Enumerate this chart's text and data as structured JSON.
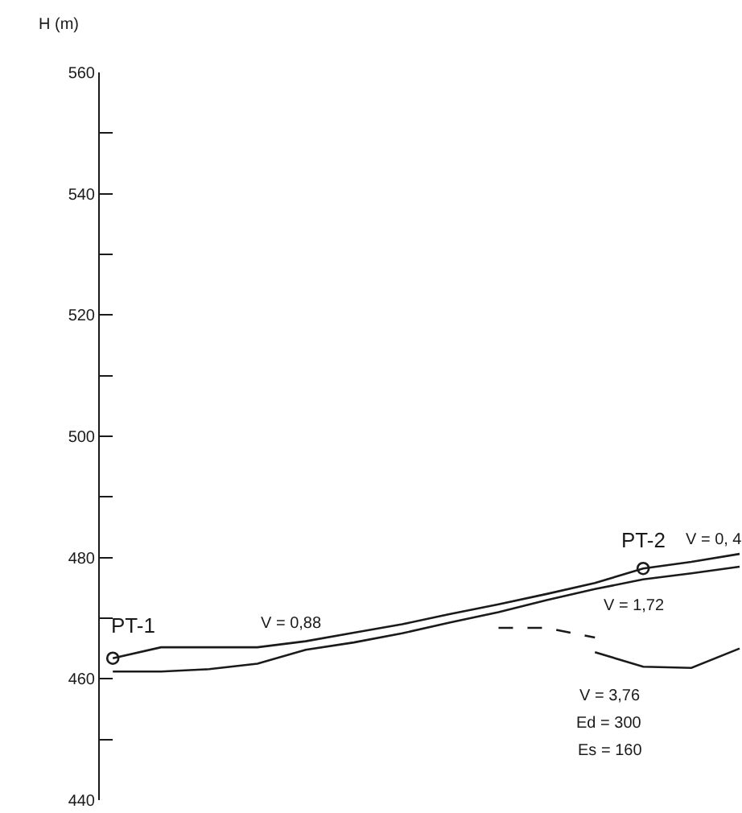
{
  "chart_data": {
    "type": "line",
    "ylabel": "H (m)",
    "categories": [
      null,
      null,
      null,
      null,
      null,
      null,
      null,
      null,
      null,
      null,
      null,
      null,
      null,
      null
    ],
    "series": [
      {
        "color": "#1a1a1a",
        "values": [
          463.4,
          465.2,
          465.2,
          465.2,
          466.2,
          467.6,
          469.0,
          470.7,
          472.3,
          474.0,
          475.8,
          478.2,
          479.3,
          480.6
        ]
      },
      {
        "color": "#1a1a1a",
        "values": [
          461.2,
          461.2,
          461.6,
          462.5,
          464.8,
          466.0,
          467.5,
          469.3,
          471.0,
          473.0,
          474.8,
          476.4,
          477.4,
          478.5
        ]
      },
      {
        "color": "#1a1a1a",
        "values": [
          null,
          null,
          null,
          null,
          null,
          null,
          null,
          null,
          null,
          null,
          464.4,
          462.0,
          461.8,
          465.0
        ]
      },
      {
        "color": "#1a1a1a",
        "line_style": "dashed",
        "values": [
          null,
          null,
          null,
          null,
          null,
          null,
          null,
          null,
          468.4,
          468.4,
          466.8,
          null,
          null,
          null
        ]
      },
      {
        "color": "#1a1a1a",
        "type": "scatter",
        "marker": "circle",
        "values": [
          463.4,
          null,
          null,
          null,
          null,
          null,
          null,
          null,
          null,
          null,
          null,
          478.2,
          null,
          null
        ]
      }
    ],
    "ylim": [
      440,
      560
    ],
    "yticks": [
      440,
      {
        "value": 450,
        "label": null
      },
      460,
      {
        "value": 470,
        "label": null
      },
      480,
      {
        "value": 490,
        "label": null
      },
      500,
      {
        "value": 510,
        "label": null
      },
      520,
      {
        "value": 530,
        "label": null
      },
      540,
      {
        "value": 550,
        "label": null
      },
      560
    ],
    "annotations": [
      "PT-1",
      "V = 0,88",
      "PT-2",
      "V = 0, 4",
      "V = 1,72",
      "V = 3,76",
      "Ed = 300",
      "Es = 160"
    ],
    "tick_labels": "y"
  }
}
